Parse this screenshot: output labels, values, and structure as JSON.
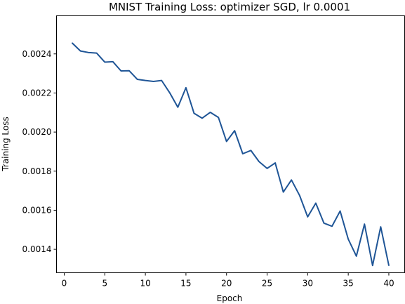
{
  "chart_data": {
    "type": "line",
    "title": "MNIST Training Loss: optimizer SGD, lr 0.0001",
    "xlabel": "Epoch",
    "ylabel": "Training Loss",
    "xlim": [
      -0.95,
      41.95
    ],
    "ylim": [
      0.00128,
      0.002595
    ],
    "xticks": [
      0,
      5,
      10,
      15,
      20,
      25,
      30,
      35,
      40
    ],
    "xtick_labels": [
      "0",
      "5",
      "10",
      "15",
      "20",
      "25",
      "30",
      "35",
      "40"
    ],
    "yticks": [
      0.0014,
      0.0016,
      0.0018,
      0.002,
      0.0022,
      0.0024
    ],
    "ytick_labels": [
      "0.0014",
      "0.0016",
      "0.0018",
      "0.0020",
      "0.0022",
      "0.0024"
    ],
    "grid": false,
    "series": [
      {
        "color": "#1f5596",
        "x": [
          1,
          2,
          3,
          4,
          5,
          6,
          7,
          8,
          9,
          10,
          11,
          12,
          13,
          14,
          15,
          16,
          17,
          18,
          19,
          20,
          21,
          22,
          23,
          24,
          25,
          26,
          27,
          28,
          29,
          30,
          31,
          32,
          33,
          34,
          35,
          36,
          37,
          38,
          39,
          40
        ],
        "y": [
          0.002455,
          0.002415,
          0.002407,
          0.002404,
          0.002358,
          0.00236,
          0.002313,
          0.002314,
          0.00227,
          0.002264,
          0.002259,
          0.002264,
          0.002201,
          0.002127,
          0.002227,
          0.002096,
          0.002071,
          0.002101,
          0.002075,
          0.001952,
          0.002007,
          0.001889,
          0.001906,
          0.001849,
          0.001814,
          0.001842,
          0.001693,
          0.001755,
          0.001676,
          0.001566,
          0.001636,
          0.001534,
          0.001518,
          0.001596,
          0.001452,
          0.001365,
          0.001529,
          0.001317,
          0.001515,
          0.001318
        ]
      }
    ]
  }
}
